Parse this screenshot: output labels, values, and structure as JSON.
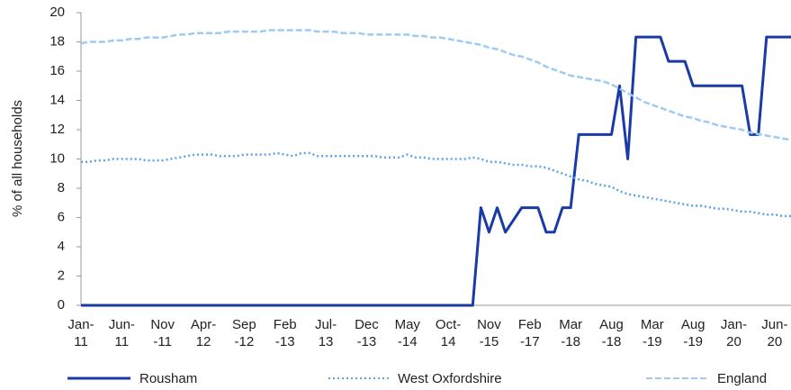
{
  "chart_data": {
    "type": "line",
    "ylabel": "% of all households",
    "ylim": [
      0,
      20
    ],
    "yticks": [
      0,
      2,
      4,
      6,
      8,
      10,
      12,
      14,
      16,
      18,
      20
    ],
    "legend": "bottom",
    "categories": [
      [
        "Jan-",
        "11"
      ],
      null,
      null,
      null,
      null,
      [
        "Jun-",
        "11"
      ],
      null,
      null,
      null,
      null,
      [
        "Nov",
        "-11"
      ],
      null,
      null,
      null,
      null,
      [
        "Apr-",
        "12"
      ],
      null,
      null,
      null,
      null,
      [
        "Sep",
        "-12"
      ],
      null,
      null,
      null,
      null,
      [
        "Feb",
        "-13"
      ],
      null,
      null,
      null,
      null,
      [
        "Jul-",
        "13"
      ],
      null,
      null,
      null,
      null,
      [
        "Dec",
        "-13"
      ],
      null,
      null,
      null,
      null,
      [
        "May",
        "-14"
      ],
      null,
      null,
      null,
      null,
      [
        "Oct-",
        "14"
      ],
      null,
      null,
      null,
      null,
      [
        "Nov",
        "-15"
      ],
      null,
      null,
      null,
      null,
      [
        "Feb",
        "-17"
      ],
      null,
      null,
      null,
      null,
      [
        "Mar",
        "-18"
      ],
      null,
      null,
      null,
      null,
      [
        "Aug",
        "-18"
      ],
      null,
      null,
      null,
      null,
      [
        "Mar",
        "-19"
      ],
      null,
      null,
      null,
      null,
      [
        "Aug",
        "-19"
      ],
      null,
      null,
      null,
      null,
      [
        "Jan-",
        "20"
      ],
      null,
      null,
      null,
      null,
      [
        "Jun-",
        "20"
      ],
      null,
      null
    ],
    "series": [
      {
        "name": "Rousham",
        "color": "#1a3aa6",
        "style": "solid",
        "values": [
          0,
          0,
          0,
          0,
          0,
          0,
          0,
          0,
          0,
          0,
          0,
          0,
          0,
          0,
          0,
          0,
          0,
          0,
          0,
          0,
          0,
          0,
          0,
          0,
          0,
          0,
          0,
          0,
          0,
          0,
          0,
          0,
          0,
          0,
          0,
          0,
          0,
          0,
          0,
          0,
          0,
          0,
          0,
          0,
          0,
          0,
          0,
          0,
          0,
          6.67,
          5,
          6.67,
          5,
          5.83,
          6.67,
          6.67,
          6.67,
          5,
          5,
          6.67,
          6.67,
          11.67,
          11.67,
          11.67,
          11.67,
          11.67,
          15,
          10,
          18.33,
          18.33,
          18.33,
          18.33,
          16.67,
          16.67,
          16.67,
          15,
          15,
          15,
          15,
          15,
          15,
          15,
          11.67,
          11.67,
          18.33,
          18.33,
          18.33,
          18.33
        ]
      },
      {
        "name": "West Oxfordshire",
        "color": "#5aa4ea",
        "style": "dotted",
        "values": [
          9.8,
          9.8,
          9.9,
          9.9,
          10.0,
          10.0,
          10.0,
          10.0,
          9.9,
          9.9,
          9.9,
          10.0,
          10.1,
          10.2,
          10.3,
          10.3,
          10.3,
          10.2,
          10.2,
          10.2,
          10.3,
          10.3,
          10.3,
          10.3,
          10.4,
          10.3,
          10.2,
          10.4,
          10.4,
          10.2,
          10.2,
          10.2,
          10.2,
          10.2,
          10.2,
          10.2,
          10.2,
          10.1,
          10.1,
          10.1,
          10.3,
          10.1,
          10.1,
          10.0,
          10.0,
          10.0,
          10.0,
          10.0,
          10.1,
          10.0,
          9.8,
          9.8,
          9.7,
          9.6,
          9.6,
          9.5,
          9.5,
          9.4,
          9.2,
          9.0,
          8.8,
          8.6,
          8.5,
          8.3,
          8.2,
          8.1,
          7.8,
          7.6,
          7.5,
          7.4,
          7.3,
          7.2,
          7.1,
          7.0,
          6.9,
          6.8,
          6.8,
          6.7,
          6.6,
          6.6,
          6.5,
          6.4,
          6.4,
          6.3,
          6.2,
          6.2,
          6.1,
          6.1
        ]
      },
      {
        "name": "England",
        "color": "#9fcbf2",
        "style": "dashed",
        "values": [
          17.9,
          18.0,
          18.0,
          18.0,
          18.1,
          18.1,
          18.2,
          18.2,
          18.3,
          18.3,
          18.3,
          18.4,
          18.5,
          18.5,
          18.6,
          18.6,
          18.6,
          18.6,
          18.7,
          18.7,
          18.7,
          18.7,
          18.7,
          18.8,
          18.8,
          18.8,
          18.8,
          18.8,
          18.8,
          18.7,
          18.7,
          18.7,
          18.6,
          18.6,
          18.6,
          18.5,
          18.5,
          18.5,
          18.5,
          18.5,
          18.5,
          18.4,
          18.4,
          18.3,
          18.3,
          18.2,
          18.1,
          18.0,
          17.9,
          17.8,
          17.6,
          17.5,
          17.3,
          17.1,
          17.0,
          16.8,
          16.6,
          16.3,
          16.1,
          15.9,
          15.7,
          15.6,
          15.5,
          15.4,
          15.3,
          15.1,
          14.8,
          14.5,
          14.2,
          13.9,
          13.7,
          13.5,
          13.3,
          13.1,
          12.9,
          12.8,
          12.6,
          12.5,
          12.3,
          12.2,
          12.1,
          12.0,
          11.8,
          11.7,
          11.6,
          11.5,
          11.4,
          11.3
        ]
      }
    ]
  }
}
